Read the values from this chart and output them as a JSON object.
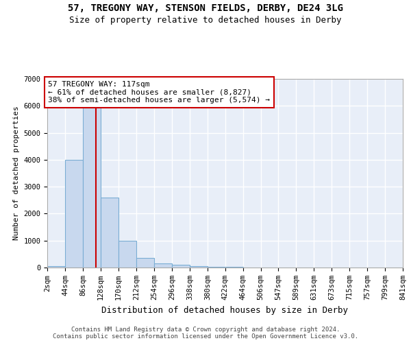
{
  "title": "57, TREGONY WAY, STENSON FIELDS, DERBY, DE24 3LG",
  "subtitle": "Size of property relative to detached houses in Derby",
  "xlabel": "Distribution of detached houses by size in Derby",
  "ylabel": "Number of detached properties",
  "bar_color": "#c8d8ee",
  "bar_edge_color": "#7aadd4",
  "background_color": "#e8eef8",
  "grid_color": "#ffffff",
  "bin_edges": [
    2,
    44,
    86,
    128,
    170,
    212,
    254,
    296,
    338,
    380,
    422,
    464,
    506,
    547,
    589,
    631,
    673,
    715,
    757,
    799,
    841
  ],
  "bin_labels": [
    "2sqm",
    "44sqm",
    "86sqm",
    "128sqm",
    "170sqm",
    "212sqm",
    "254sqm",
    "296sqm",
    "338sqm",
    "380sqm",
    "422sqm",
    "464sqm",
    "506sqm",
    "547sqm",
    "589sqm",
    "631sqm",
    "673sqm",
    "715sqm",
    "757sqm",
    "799sqm",
    "841sqm"
  ],
  "bar_heights": [
    50,
    4000,
    6600,
    2600,
    1000,
    350,
    150,
    100,
    50,
    30,
    20,
    10,
    5,
    5,
    3,
    2,
    1,
    1,
    0,
    0
  ],
  "property_size": 117,
  "red_line_color": "#cc0000",
  "annotation_line1": "57 TREGONY WAY: 117sqm",
  "annotation_line2": "← 61% of detached houses are smaller (8,827)",
  "annotation_line3": "38% of semi-detached houses are larger (5,574) →",
  "annotation_box_color": "#cc0000",
  "ylim": [
    0,
    7000
  ],
  "yticks": [
    0,
    1000,
    2000,
    3000,
    4000,
    5000,
    6000,
    7000
  ],
  "footer_text": "Contains HM Land Registry data © Crown copyright and database right 2024.\nContains public sector information licensed under the Open Government Licence v3.0.",
  "title_fontsize": 10,
  "subtitle_fontsize": 9,
  "xlabel_fontsize": 9,
  "ylabel_fontsize": 8,
  "tick_fontsize": 7.5,
  "annotation_fontsize": 8,
  "footer_fontsize": 6.5
}
